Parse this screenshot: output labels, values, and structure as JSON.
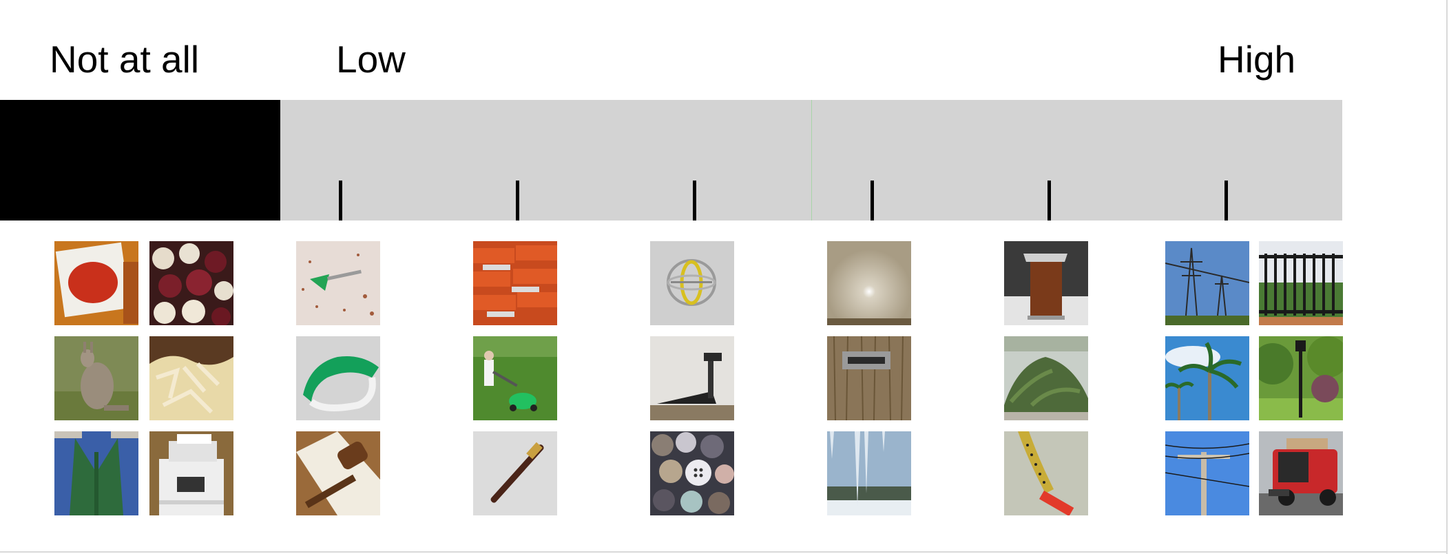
{
  "scale": {
    "labels": {
      "not_at_all": "Not at all",
      "low": "Low",
      "high": "High"
    },
    "tick_count": 6,
    "colors": {
      "not_at_all_segment": "#000000",
      "scale_background": "#d3d3d3",
      "tick": "#000000",
      "midpoint_line": "#a8d4a8"
    }
  },
  "image_groups": [
    {
      "group": "not-at-all",
      "items": [
        "ketchup-dip-icon",
        "beads-icon",
        "kangaroo-icon",
        "sauerkraut-icon",
        "knit-vest-icon",
        "printer-icon"
      ]
    },
    {
      "group": "tick-1",
      "items": [
        "dart-icon",
        "visor-icon",
        "gavel-icon"
      ]
    },
    {
      "group": "tick-2",
      "items": [
        "brick-pallets-icon",
        "lawn-mower-icon",
        "flute-icon"
      ]
    },
    {
      "group": "tick-3",
      "items": [
        "gyroscope-icon",
        "treadmill-icon",
        "buttons-icon"
      ]
    },
    {
      "group": "tick-4",
      "items": [
        "projection-screen-icon",
        "mail-slot-icon",
        "icicles-icon"
      ]
    },
    {
      "group": "tick-5",
      "items": [
        "lectern-icon",
        "moss-pile-icon",
        "insect-on-stick-icon"
      ]
    },
    {
      "group": "high",
      "items": [
        "power-pylons-icon",
        "iron-gate-icon",
        "palm-trees-icon",
        "park-lamp-icon",
        "utility-pole-icon",
        "street-sweeper-icon"
      ]
    }
  ]
}
